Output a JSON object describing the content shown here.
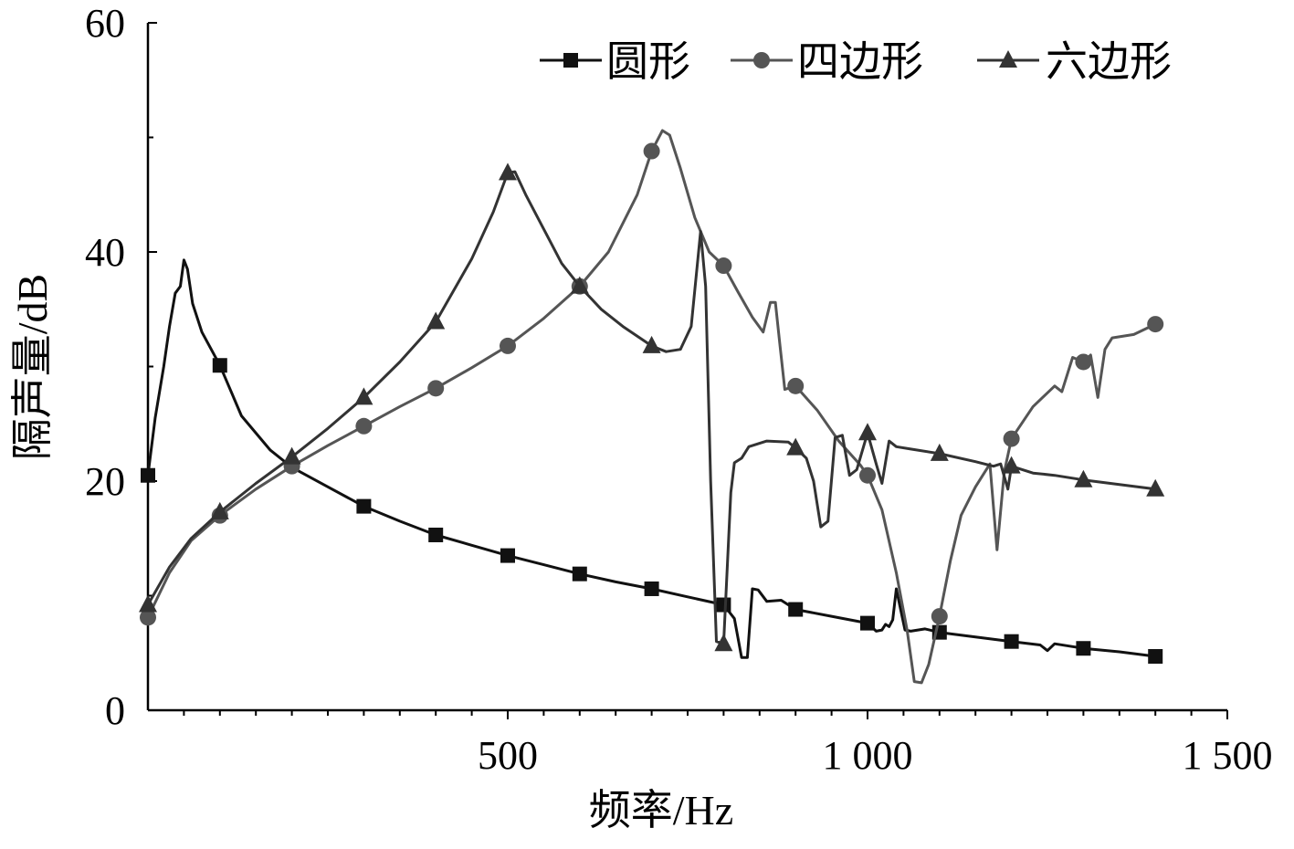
{
  "chart_data": {
    "type": "line",
    "xlabel": "频率/Hz",
    "ylabel": "隔声量/dB",
    "xlim": [
      0,
      1500
    ],
    "ylim": [
      0,
      60
    ],
    "x_ticks": [
      500,
      1000,
      1500
    ],
    "x_tick_labels": [
      "500",
      "1 000",
      "1 500"
    ],
    "x_minor_step": 50,
    "y_ticks": [
      0,
      20,
      40,
      60
    ],
    "y_tick_labels": [
      "0",
      "20",
      "40",
      "60"
    ],
    "y_minor_step": 10,
    "legend_position": "top-right",
    "grid": false,
    "series": [
      {
        "name": "圆形",
        "color": "#111111",
        "marker": "square",
        "markers": [
          [
            0,
            20.5
          ],
          [
            100,
            30.1
          ],
          [
            300,
            17.8
          ],
          [
            400,
            15.3
          ],
          [
            500,
            13.5
          ],
          [
            600,
            11.9
          ],
          [
            700,
            10.6
          ],
          [
            800,
            9.2
          ],
          [
            900,
            8.8
          ],
          [
            1000,
            7.6
          ],
          [
            1100,
            6.8
          ],
          [
            1200,
            6.0
          ],
          [
            1300,
            5.4
          ],
          [
            1400,
            4.7
          ]
        ],
        "points": [
          [
            0,
            20.5
          ],
          [
            10,
            25.5
          ],
          [
            22,
            30
          ],
          [
            30,
            33.5
          ],
          [
            38,
            36.4
          ],
          [
            45,
            37
          ],
          [
            50,
            39.3
          ],
          [
            55,
            38.5
          ],
          [
            62,
            35.5
          ],
          [
            75,
            33
          ],
          [
            100,
            30.1
          ],
          [
            130,
            25.7
          ],
          [
            170,
            22.7
          ],
          [
            200,
            21.2
          ],
          [
            250,
            19.5
          ],
          [
            300,
            17.8
          ],
          [
            350,
            16.5
          ],
          [
            400,
            15.3
          ],
          [
            450,
            14.4
          ],
          [
            500,
            13.5
          ],
          [
            550,
            12.7
          ],
          [
            600,
            11.9
          ],
          [
            650,
            11.2
          ],
          [
            700,
            10.6
          ],
          [
            750,
            9.9
          ],
          [
            800,
            9.2
          ],
          [
            815,
            8.0
          ],
          [
            825,
            4.6
          ],
          [
            833,
            4.6
          ],
          [
            840,
            10.6
          ],
          [
            848,
            10.5
          ],
          [
            860,
            9.5
          ],
          [
            880,
            9.6
          ],
          [
            900,
            8.8
          ],
          [
            950,
            8.2
          ],
          [
            1000,
            7.6
          ],
          [
            1012,
            6.9
          ],
          [
            1020,
            7.0
          ],
          [
            1025,
            7.5
          ],
          [
            1030,
            7.3
          ],
          [
            1035,
            7.9
          ],
          [
            1040,
            10.6
          ],
          [
            1047,
            8.5
          ],
          [
            1052,
            7.0
          ],
          [
            1060,
            6.9
          ],
          [
            1080,
            7.1
          ],
          [
            1100,
            6.8
          ],
          [
            1150,
            6.4
          ],
          [
            1200,
            6.0
          ],
          [
            1240,
            5.7
          ],
          [
            1250,
            5.2
          ],
          [
            1260,
            5.8
          ],
          [
            1300,
            5.4
          ],
          [
            1350,
            5.1
          ],
          [
            1400,
            4.7
          ]
        ]
      },
      {
        "name": "四边形",
        "color": "#555555",
        "marker": "circle",
        "markers": [
          [
            0,
            8.1
          ],
          [
            100,
            17.0
          ],
          [
            200,
            21.3
          ],
          [
            300,
            24.8
          ],
          [
            400,
            28.1
          ],
          [
            500,
            31.8
          ],
          [
            600,
            37.0
          ],
          [
            700,
            48.8
          ],
          [
            800,
            38.8
          ],
          [
            900,
            28.3
          ],
          [
            1000,
            20.5
          ],
          [
            1100,
            8.2
          ],
          [
            1200,
            23.7
          ],
          [
            1300,
            30.4
          ],
          [
            1400,
            33.7
          ]
        ],
        "points": [
          [
            0,
            8.1
          ],
          [
            30,
            12
          ],
          [
            60,
            14.8
          ],
          [
            100,
            17.0
          ],
          [
            150,
            19.3
          ],
          [
            200,
            21.3
          ],
          [
            250,
            23.1
          ],
          [
            300,
            24.8
          ],
          [
            350,
            26.5
          ],
          [
            400,
            28.1
          ],
          [
            450,
            29.9
          ],
          [
            500,
            31.8
          ],
          [
            550,
            34.2
          ],
          [
            600,
            37.0
          ],
          [
            640,
            40.0
          ],
          [
            680,
            45.0
          ],
          [
            700,
            48.8
          ],
          [
            715,
            50.6
          ],
          [
            725,
            50.2
          ],
          [
            740,
            47.3
          ],
          [
            760,
            43.0
          ],
          [
            780,
            40.0
          ],
          [
            800,
            38.8
          ],
          [
            820,
            36.5
          ],
          [
            840,
            34.3
          ],
          [
            855,
            33.0
          ],
          [
            865,
            35.6
          ],
          [
            872,
            35.6
          ],
          [
            878,
            32.0
          ],
          [
            885,
            28.0
          ],
          [
            900,
            28.3
          ],
          [
            930,
            26.2
          ],
          [
            960,
            23.5
          ],
          [
            990,
            21.4
          ],
          [
            1000,
            20.5
          ],
          [
            1020,
            17.5
          ],
          [
            1040,
            12.0
          ],
          [
            1055,
            7.0
          ],
          [
            1065,
            2.5
          ],
          [
            1075,
            2.4
          ],
          [
            1085,
            4.0
          ],
          [
            1100,
            8.2
          ],
          [
            1115,
            13.0
          ],
          [
            1130,
            17.0
          ],
          [
            1150,
            19.5
          ],
          [
            1170,
            21.5
          ],
          [
            1180,
            14.0
          ],
          [
            1190,
            20.8
          ],
          [
            1200,
            23.7
          ],
          [
            1230,
            26.5
          ],
          [
            1260,
            28.3
          ],
          [
            1270,
            27.8
          ],
          [
            1285,
            30.8
          ],
          [
            1300,
            30.4
          ],
          [
            1310,
            31.0
          ],
          [
            1320,
            27.3
          ],
          [
            1330,
            31.5
          ],
          [
            1340,
            32.5
          ],
          [
            1370,
            32.8
          ],
          [
            1400,
            33.7
          ]
        ]
      },
      {
        "name": "六边形",
        "color": "#333333",
        "marker": "triangle",
        "markers": [
          [
            0,
            9.2
          ],
          [
            100,
            17.3
          ],
          [
            200,
            22.1
          ],
          [
            300,
            27.3
          ],
          [
            400,
            33.9
          ],
          [
            500,
            46.9
          ],
          [
            600,
            37.0
          ],
          [
            700,
            31.8
          ],
          [
            800,
            5.8
          ],
          [
            900,
            22.9
          ],
          [
            1000,
            24.2
          ],
          [
            1100,
            22.4
          ],
          [
            1200,
            21.3
          ],
          [
            1300,
            20.1
          ],
          [
            1400,
            19.3
          ]
        ],
        "points": [
          [
            0,
            9.2
          ],
          [
            30,
            12.5
          ],
          [
            60,
            15
          ],
          [
            100,
            17.3
          ],
          [
            150,
            19.8
          ],
          [
            200,
            22.1
          ],
          [
            250,
            24.6
          ],
          [
            300,
            27.3
          ],
          [
            350,
            30.4
          ],
          [
            400,
            33.9
          ],
          [
            450,
            39.4
          ],
          [
            480,
            43.5
          ],
          [
            500,
            46.9
          ],
          [
            510,
            47
          ],
          [
            525,
            45.0
          ],
          [
            550,
            42.0
          ],
          [
            575,
            39.0
          ],
          [
            600,
            37.0
          ],
          [
            630,
            35.0
          ],
          [
            660,
            33.5
          ],
          [
            700,
            31.8
          ],
          [
            720,
            31.3
          ],
          [
            740,
            31.5
          ],
          [
            755,
            33.5
          ],
          [
            768,
            41.8
          ],
          [
            775,
            37.0
          ],
          [
            782,
            20.0
          ],
          [
            790,
            6.0
          ],
          [
            800,
            5.8
          ],
          [
            810,
            19.0
          ],
          [
            815,
            21.6
          ],
          [
            825,
            22.0
          ],
          [
            835,
            23.0
          ],
          [
            860,
            23.5
          ],
          [
            890,
            23.4
          ],
          [
            900,
            22.9
          ],
          [
            915,
            22.0
          ],
          [
            925,
            20.0
          ],
          [
            935,
            16.0
          ],
          [
            945,
            16.5
          ],
          [
            955,
            23.8
          ],
          [
            965,
            24.0
          ],
          [
            975,
            20.5
          ],
          [
            985,
            21.0
          ],
          [
            1000,
            24.2
          ],
          [
            1012,
            21.5
          ],
          [
            1020,
            19.8
          ],
          [
            1030,
            23.5
          ],
          [
            1040,
            23.0
          ],
          [
            1060,
            22.8
          ],
          [
            1100,
            22.4
          ],
          [
            1150,
            21.7
          ],
          [
            1175,
            21.3
          ],
          [
            1185,
            21.5
          ],
          [
            1195,
            19.3
          ],
          [
            1200,
            21.3
          ],
          [
            1230,
            20.7
          ],
          [
            1260,
            20.5
          ],
          [
            1300,
            20.1
          ],
          [
            1350,
            19.7
          ],
          [
            1400,
            19.3
          ]
        ]
      }
    ]
  }
}
